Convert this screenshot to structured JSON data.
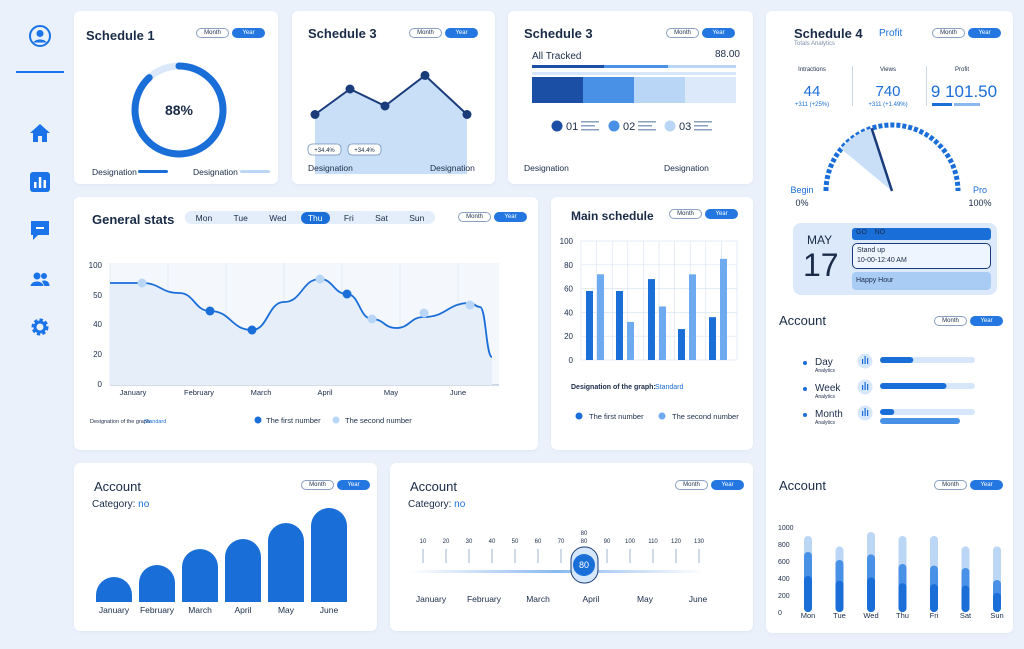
{
  "toggle": {
    "month": "Month",
    "year": "Year"
  },
  "card1": {
    "title": "Schedule 1",
    "percent_label": "88%",
    "percent": 0.88,
    "legend": [
      "Designation",
      "Designation"
    ]
  },
  "card2": {
    "title": "Schedule 3",
    "values": [
      55,
      70,
      60,
      78,
      55
    ],
    "badges": [
      "+34.4%",
      "+34.4%"
    ],
    "legend": [
      "Designation",
      "Designation"
    ]
  },
  "card3": {
    "title": "Schedule 3",
    "tracked_label": "All Tracked",
    "tracked_value": "88.00",
    "legend": [
      {
        "num": "01",
        "color": "#1b4fa6"
      },
      {
        "num": "02",
        "color": "#4891e6"
      },
      {
        "num": "03",
        "color": "#b9d6f7"
      }
    ],
    "designations": [
      "Designation",
      "Designation"
    ]
  },
  "card4": {
    "title": "Schedule 4",
    "profit_label": "Profit",
    "subtitle": "Totals Analytics",
    "stats": [
      {
        "label": "Intractions",
        "value": "44",
        "delta": "+311 (+25%)"
      },
      {
        "label": "Views",
        "value": "740",
        "delta": "+311 (+1.49%)"
      },
      {
        "label": "Profit",
        "value": "9 101.50",
        "delta": ""
      }
    ],
    "begin_label": "Begin",
    "begin_value": "0%",
    "pro_label": "Pro",
    "pro_value": "100%",
    "gauge_value": 0.4
  },
  "calendar": {
    "month": "MAY",
    "day": "17",
    "events": [
      {
        "text": "GO    NO",
        "time": ""
      },
      {
        "text": "Stand up",
        "time": "10-00-12:40 AM"
      },
      {
        "text": "Happy Hour",
        "time": ""
      }
    ]
  },
  "general": {
    "title": "General stats",
    "days": [
      "Mon",
      "Tue",
      "Wed",
      "Thu",
      "Fri",
      "Sat",
      "Sun"
    ],
    "active_day": "Thu",
    "yticks": [
      "100",
      "50",
      "40",
      "20",
      "0"
    ],
    "months": [
      "January",
      "February",
      "March",
      "April",
      "May",
      "June"
    ],
    "footnote_label": "Designation of the graph:",
    "footnote_value": "Standard",
    "legend": [
      "The first number",
      "The second number"
    ]
  },
  "mainsched": {
    "title": "Main schedule",
    "yticks": [
      "100",
      "80",
      "60",
      "40",
      "20",
      "0"
    ],
    "series": [
      {
        "name": "The first number",
        "values": [
          58,
          58,
          68,
          26,
          36
        ]
      },
      {
        "name": "The second number",
        "values": [
          72,
          32,
          45,
          72,
          85
        ]
      }
    ],
    "footnote_label": "Designation of the graph:",
    "footnote_value": "Standard"
  },
  "account_side": {
    "title": "Account",
    "rows": [
      {
        "label": "Day",
        "sub": "Analytics",
        "value": 0.35
      },
      {
        "label": "Week",
        "sub": "Analytics",
        "value": 0.7
      },
      {
        "label": "Month",
        "sub": "Analytics",
        "value": 0.15
      }
    ]
  },
  "account1": {
    "title": "Account",
    "category_label": "Category:",
    "category_value": "no",
    "months": [
      "January",
      "February",
      "March",
      "April",
      "May",
      "June"
    ],
    "values": [
      25,
      37,
      53,
      63,
      79,
      94
    ]
  },
  "account2": {
    "title": "Account",
    "category_label": "Category:",
    "category_value": "no",
    "scale": [
      "10",
      "20",
      "30",
      "40",
      "50",
      "60",
      "70",
      "80",
      "90",
      "100",
      "110",
      "120",
      "130"
    ],
    "marker_top": "80",
    "marker_value": "80",
    "months": [
      "January",
      "February",
      "March",
      "April",
      "May",
      "June"
    ]
  },
  "account3": {
    "title": "Account",
    "yticks": [
      "1000",
      "800",
      "600",
      "400",
      "200",
      "0"
    ],
    "days": [
      "Mon",
      "Tue",
      "Wed",
      "Thu",
      "Fri",
      "Sat",
      "Sun"
    ]
  }
}
